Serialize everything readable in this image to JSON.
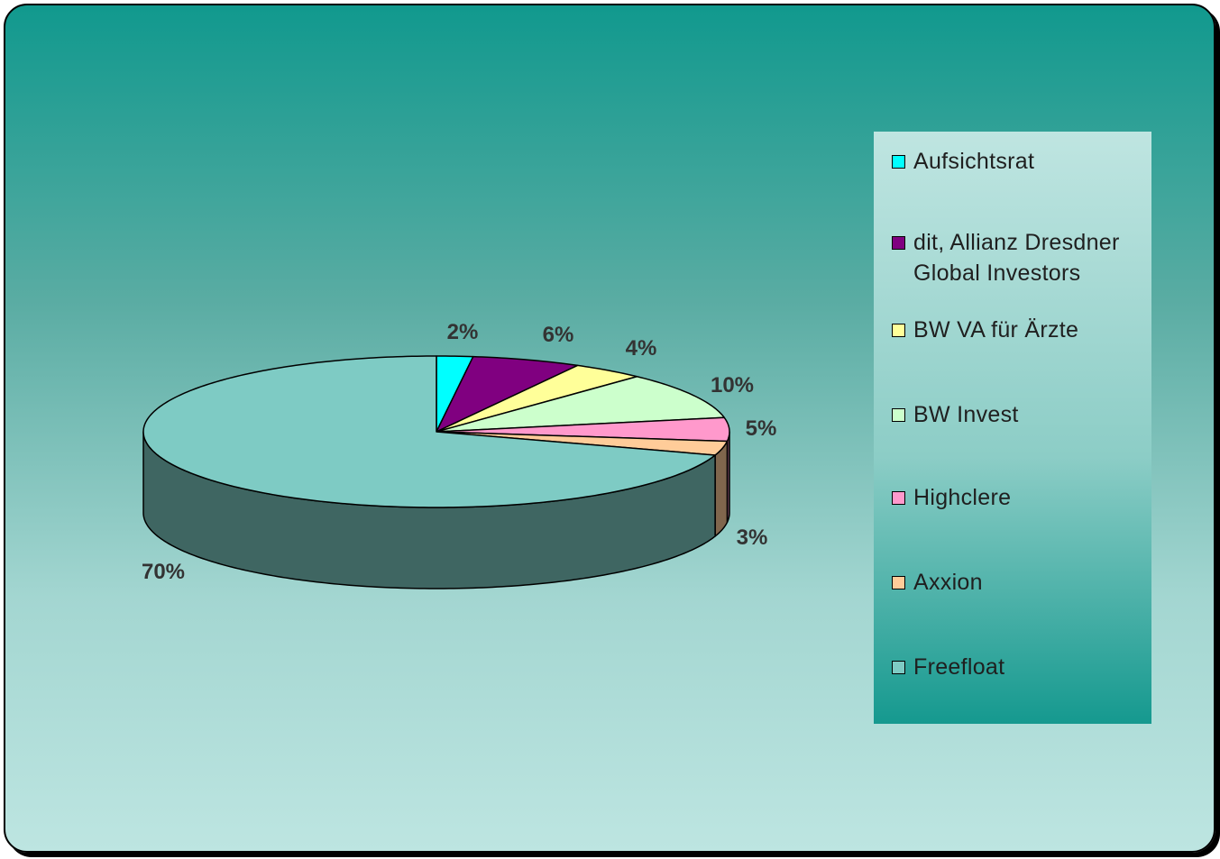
{
  "chart_data": {
    "type": "pie",
    "subtype": "3d-pie",
    "legend_position": "right",
    "series": [
      {
        "name": "Aufsichtsrat",
        "value": 2,
        "label": "2%",
        "color": "#00ffff"
      },
      {
        "name": "dit, Allianz Dresdner Global Investors",
        "value": 6,
        "label": "6%",
        "color": "#800080"
      },
      {
        "name": "BW VA für Ärzte",
        "value": 4,
        "label": "4%",
        "color": "#ffff99"
      },
      {
        "name": "BW Invest",
        "value": 10,
        "label": "10%",
        "color": "#ccffcc"
      },
      {
        "name": "Highclere",
        "value": 5,
        "label": "5%",
        "color": "#ff99cc"
      },
      {
        "name": "Axxion",
        "value": 3,
        "label": "3%",
        "color": "#ffcc99"
      },
      {
        "name": "Freefloat",
        "value": 70,
        "label": "70%",
        "color": "#7ecbc4"
      }
    ]
  }
}
